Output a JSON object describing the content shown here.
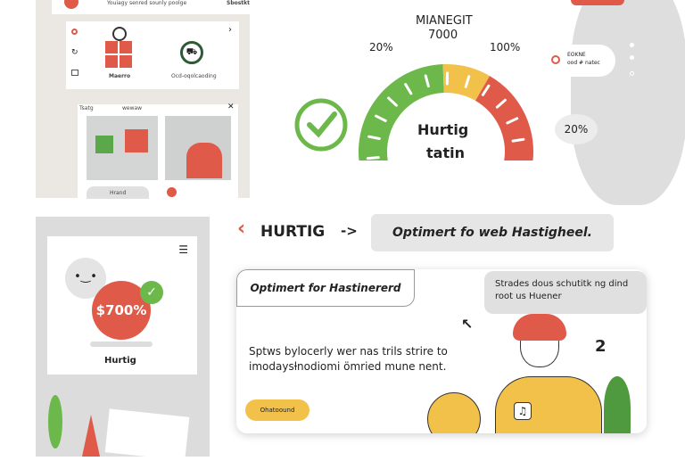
{
  "top_left": {
    "header_text": "Youiagy senred sounly poolge",
    "header_right": "Sbostkt",
    "gift_label": "Maerro",
    "cart_label": "Ocd-oqolcaoding",
    "window_title": "Tsatg",
    "window_tab": "wewaw",
    "bottom_label": "Hrand"
  },
  "gauge": {
    "title": "MIANEGIT",
    "value": "7000",
    "left_label": "20%",
    "right_label": "100%",
    "center_line1": "Hurtig",
    "center_line2": "tatin",
    "percent": 70,
    "colors": {
      "green": "#6cb84a",
      "yellow": "#f2c14a",
      "red": "#e05a4a"
    }
  },
  "side_note": {
    "line1": "EOKNE",
    "line2": "ood # natec"
  },
  "bubble_percent": "20%",
  "left_panel": {
    "price": "$700%",
    "label": "Hurtig"
  },
  "heading": {
    "title": "HURTIG",
    "arrow": "->",
    "pill": "Optimert fo web Hastigheel."
  },
  "bottom_card": {
    "tab": "Optimert for Hastinererd",
    "note": "Strades dous schutitk ng dind root us Huener",
    "body": "Sptws bylocerly wer nas trils strire to imodaysƚnodiomi ömried mune nent.",
    "button": "Ohatoound",
    "badge": "2"
  }
}
